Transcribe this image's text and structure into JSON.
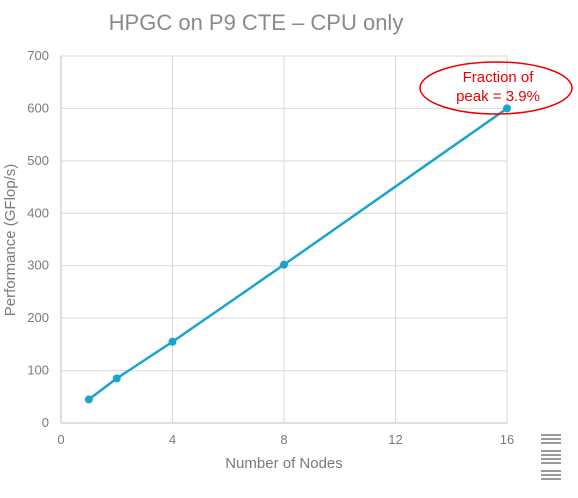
{
  "chart_data": {
    "type": "line",
    "title": "HPGC on P9 CTE – CPU only",
    "xlabel": "Number of Nodes",
    "ylabel": "Performance (GFlop/s)",
    "xlim": [
      0,
      16
    ],
    "ylim": [
      0,
      700
    ],
    "xticks": [
      0,
      4,
      8,
      12,
      16
    ],
    "yticks": [
      0,
      100,
      200,
      300,
      400,
      500,
      600,
      700
    ],
    "grid": true,
    "series": [
      {
        "x": [
          1,
          2,
          4,
          8,
          16
        ],
        "y": [
          45,
          85,
          155,
          302,
          600
        ]
      }
    ],
    "annotation": {
      "lines": [
        "Fraction of",
        "peak = 3.9%"
      ],
      "target": {
        "x": 16,
        "y": 600
      }
    },
    "colors": {
      "series": "#1aa3cc",
      "grid": "#d9d9d9",
      "axis": "#bfbfbf",
      "annotation": "#ee0000",
      "text": "#7a7a7a"
    }
  },
  "logo": {
    "text": "IBM",
    "icon": "ibm-logo-icon"
  }
}
